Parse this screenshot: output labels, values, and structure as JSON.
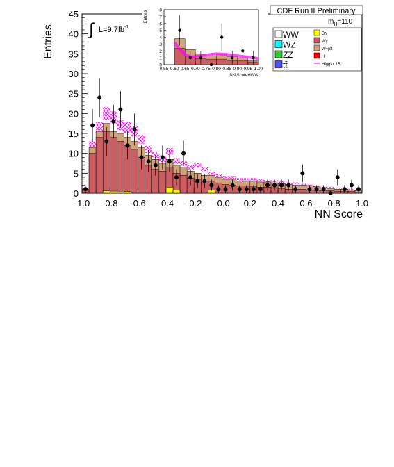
{
  "chart_data": {
    "type": "bar",
    "header": "CDF Run II Preliminary",
    "mass_label": "m",
    "mass_sub": "H",
    "mass_value": "=110",
    "lumi_symbol": "∫",
    "lumi_text": "L=9.7fb",
    "lumi_sup": "-1",
    "xlabel": "NN Score",
    "ylabel": "Entries",
    "xlim": [
      -1.0,
      1.0
    ],
    "ylim": [
      0,
      45
    ],
    "x_ticks": [
      "-1.0",
      "-0.8",
      "-0.6",
      "-0.4",
      "-0.2",
      "-0.0",
      "0.2",
      "0.4",
      "0.6",
      "0.8",
      "1.0"
    ],
    "y_ticks": [
      "0",
      "5",
      "10",
      "15",
      "20",
      "25",
      "30",
      "35",
      "40",
      "45"
    ],
    "bin_edges_start": -1.0,
    "bin_width": 0.05,
    "series": [
      {
        "name": "W+jet",
        "color": "#d2a37a",
        "values": [
          1.0,
          11.5,
          15.5,
          17.5,
          15.5,
          15.0,
          14.0,
          13.0,
          11.5,
          9.5,
          8.5,
          7.5,
          8.5,
          7.0,
          6.5,
          5.5,
          5.0,
          4.5,
          4.5,
          4.0,
          3.5,
          3.5,
          3.0,
          3.0,
          3.0,
          2.8,
          2.8,
          2.6,
          2.4,
          2.2,
          2.0,
          2.0,
          1.8,
          1.6,
          1.4,
          1.2,
          1.0,
          1.0,
          0.8,
          0.6
        ]
      },
      {
        "name": "Wγ",
        "color": "#cc5e62",
        "values": [
          0.8,
          10.0,
          14.0,
          15.5,
          14.0,
          13.0,
          12.0,
          11.0,
          9.0,
          7.0,
          6.0,
          5.5,
          6.5,
          5.0,
          4.5,
          3.8,
          3.5,
          3.0,
          3.0,
          2.5,
          2.2,
          2.0,
          1.8,
          1.8,
          1.6,
          1.5,
          1.5,
          1.4,
          1.2,
          1.0,
          1.0,
          1.0,
          0.8,
          0.7,
          0.6,
          0.6,
          0.5,
          0.4,
          0.4,
          0.3
        ]
      },
      {
        "name": "DY",
        "color": "#ffff00",
        "values": [
          0,
          0,
          0,
          0.6,
          0.5,
          0.3,
          0.4,
          0,
          0,
          0,
          0,
          0,
          1.5,
          0.8,
          0,
          0,
          0,
          0,
          0.8,
          0,
          0,
          0,
          0,
          0,
          0,
          0,
          0,
          0,
          0,
          0,
          0,
          0,
          0,
          0,
          0,
          0,
          0,
          0,
          0,
          0
        ]
      }
    ],
    "total_band_values": [
      1.2,
      12.0,
      16.5,
      20.0,
      19.0,
      17.0,
      16.5,
      15.5,
      13.5,
      11.0,
      9.5,
      8.5,
      10.5,
      8.0,
      7.5,
      6.5,
      7.0,
      6.0,
      5.0,
      4.5,
      4.0,
      4.0,
      3.5,
      3.5,
      3.5,
      3.2,
      3.0,
      3.0,
      2.8,
      2.5,
      2.5,
      2.2,
      2.0,
      1.8,
      1.5,
      1.5,
      1.2,
      1.2,
      1.0,
      0.8
    ],
    "data_points": {
      "x": [
        -0.975,
        -0.925,
        -0.875,
        -0.825,
        -0.775,
        -0.725,
        -0.675,
        -0.625,
        -0.575,
        -0.525,
        -0.475,
        -0.425,
        -0.375,
        -0.325,
        -0.275,
        -0.225,
        -0.175,
        -0.125,
        -0.075,
        -0.025,
        0.025,
        0.075,
        0.125,
        0.175,
        0.225,
        0.275,
        0.325,
        0.375,
        0.425,
        0.475,
        0.525,
        0.575,
        0.625,
        0.675,
        0.725,
        0.775,
        0.825,
        0.875,
        0.925,
        0.975
      ],
      "y": [
        1,
        17,
        24,
        13,
        18,
        21,
        12,
        16,
        9,
        8,
        7,
        9,
        8,
        4,
        10,
        4,
        3,
        3,
        2,
        1,
        1,
        2,
        1,
        1,
        1,
        1,
        2,
        2,
        2,
        2,
        1,
        5,
        1,
        1,
        1,
        0,
        4,
        1,
        2,
        1
      ],
      "err": [
        1,
        4.1,
        4.9,
        3.6,
        4.2,
        4.6,
        3.5,
        4.0,
        3.0,
        2.8,
        2.6,
        3.0,
        2.8,
        2.0,
        3.2,
        2.0,
        1.7,
        1.7,
        1.4,
        1,
        1,
        1.4,
        1,
        1,
        1,
        1,
        1.4,
        1.4,
        1.4,
        1.4,
        1,
        2.2,
        1,
        1,
        1,
        0,
        2.0,
        1,
        1.4,
        1
      ]
    },
    "legend": [
      {
        "label": "WW",
        "color": "#ffffff",
        "big": true
      },
      {
        "label": "WZ",
        "color": "#00ffff",
        "big": true
      },
      {
        "label": "ZZ",
        "color": "#33cc33",
        "big": true
      },
      {
        "label": "tt̄",
        "color": "#5050ff",
        "big": true
      },
      {
        "label": "DY",
        "color": "#ffff00",
        "big": false
      },
      {
        "label": "Wγ",
        "color": "#cc5e62",
        "big": false
      },
      {
        "label": "W+jet",
        "color": "#d2a37a",
        "big": false
      },
      {
        "label": "H",
        "color": "#ff0000",
        "big": false
      },
      {
        "label": "Higgsx 15",
        "color": "#ff00ff",
        "big": false,
        "line": true
      }
    ],
    "inset": {
      "xlabel": "NN ScoreHWW",
      "ylabel": "Entries",
      "xlim": [
        0.55,
        1.0
      ],
      "ylim": [
        0,
        8
      ],
      "x_ticks": [
        "0.55",
        "0.60",
        "0.65",
        "0.70",
        "0.75",
        "0.80",
        "0.85",
        "0.90",
        "0.95",
        "1.00"
      ],
      "y_ticks": [
        "0",
        "1",
        "2",
        "3",
        "4",
        "5",
        "6",
        "7",
        "8"
      ],
      "bin_width": 0.05,
      "wjet": [
        0,
        3.8,
        2.2,
        1.6,
        1.3,
        1.6,
        1.2,
        1.0,
        0.6
      ],
      "wgamma": [
        0,
        2.4,
        1.3,
        0.9,
        0.8,
        0.8,
        0.6,
        0.6,
        0.4
      ],
      "signal_x": [
        0.6,
        0.62,
        0.65,
        0.68,
        0.7,
        0.75,
        0.8,
        0.85,
        0.9,
        0.95,
        1.0
      ],
      "signal_y": [
        3.2,
        2.4,
        1.5,
        1.1,
        1.2,
        1.4,
        1.6,
        1.5,
        1.3,
        1.1,
        0.9
      ],
      "points_x": [
        0.625,
        0.675,
        0.725,
        0.775,
        0.825,
        0.875,
        0.925,
        0.975
      ],
      "points_y": [
        5,
        1,
        1,
        0,
        4,
        1,
        2,
        1
      ],
      "points_err": [
        2.2,
        1,
        1,
        0,
        2.0,
        1,
        1.4,
        1
      ]
    }
  }
}
